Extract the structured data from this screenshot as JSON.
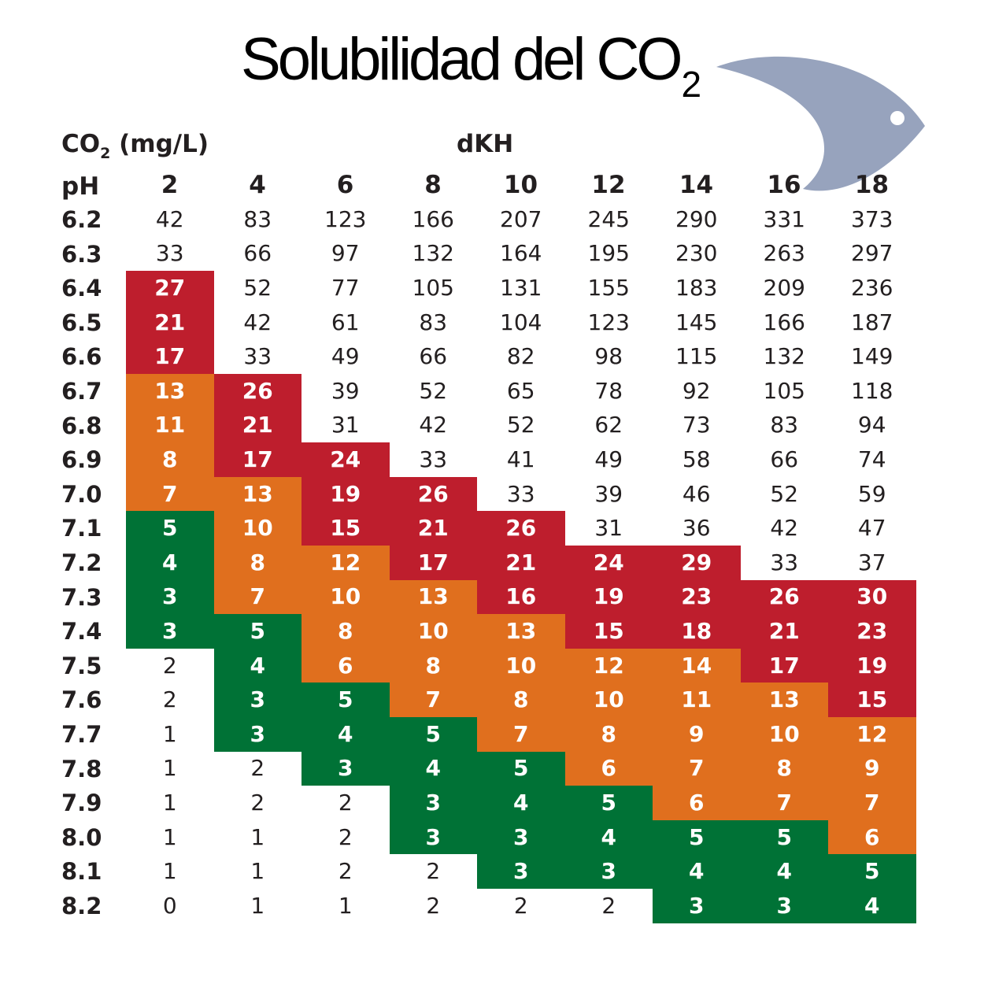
{
  "title": {
    "main": "Solubilidad del CO",
    "subscript": "2"
  },
  "header": {
    "unit_label_pre": "CO",
    "unit_label_sub": "2",
    "unit_label_post": " (mg/L)",
    "dkh_label": "dKH",
    "ph_label": "pH"
  },
  "colors": {
    "red": "#be1e2d",
    "orange": "#e06f1e",
    "green": "#007236",
    "fish": "#97a3bd"
  },
  "decoration": {
    "icon": "fish-icon"
  },
  "chart_data": {
    "type": "table",
    "title": "Solubilidad del CO2",
    "row_header": "pH",
    "column_header": "dKH",
    "value_label": "CO2 (mg/L)",
    "columns": [
      2,
      4,
      6,
      8,
      10,
      12,
      14,
      16,
      18
    ],
    "rows": [
      {
        "ph": "6.2",
        "values": [
          42,
          83,
          123,
          166,
          207,
          245,
          290,
          331,
          373
        ],
        "zones": [
          "none",
          "none",
          "none",
          "none",
          "none",
          "none",
          "none",
          "none",
          "none"
        ]
      },
      {
        "ph": "6.3",
        "values": [
          33,
          66,
          97,
          132,
          164,
          195,
          230,
          263,
          297
        ],
        "zones": [
          "none",
          "none",
          "none",
          "none",
          "none",
          "none",
          "none",
          "none",
          "none"
        ]
      },
      {
        "ph": "6.4",
        "values": [
          27,
          52,
          77,
          105,
          131,
          155,
          183,
          209,
          236
        ],
        "zones": [
          "red",
          "none",
          "none",
          "none",
          "none",
          "none",
          "none",
          "none",
          "none"
        ]
      },
      {
        "ph": "6.5",
        "values": [
          21,
          42,
          61,
          83,
          104,
          123,
          145,
          166,
          187
        ],
        "zones": [
          "red",
          "none",
          "none",
          "none",
          "none",
          "none",
          "none",
          "none",
          "none"
        ]
      },
      {
        "ph": "6.6",
        "values": [
          17,
          33,
          49,
          66,
          82,
          98,
          115,
          132,
          149
        ],
        "zones": [
          "red",
          "none",
          "none",
          "none",
          "none",
          "none",
          "none",
          "none",
          "none"
        ]
      },
      {
        "ph": "6.7",
        "values": [
          13,
          26,
          39,
          52,
          65,
          78,
          92,
          105,
          118
        ],
        "zones": [
          "orange",
          "red",
          "none",
          "none",
          "none",
          "none",
          "none",
          "none",
          "none"
        ]
      },
      {
        "ph": "6.8",
        "values": [
          11,
          21,
          31,
          42,
          52,
          62,
          73,
          83,
          94
        ],
        "zones": [
          "orange",
          "red",
          "none",
          "none",
          "none",
          "none",
          "none",
          "none",
          "none"
        ]
      },
      {
        "ph": "6.9",
        "values": [
          8,
          17,
          24,
          33,
          41,
          49,
          58,
          66,
          74
        ],
        "zones": [
          "orange",
          "red",
          "red",
          "none",
          "none",
          "none",
          "none",
          "none",
          "none"
        ]
      },
      {
        "ph": "7.0",
        "values": [
          7,
          13,
          19,
          26,
          33,
          39,
          46,
          52,
          59
        ],
        "zones": [
          "orange",
          "orange",
          "red",
          "red",
          "none",
          "none",
          "none",
          "none",
          "none"
        ]
      },
      {
        "ph": "7.1",
        "values": [
          5,
          10,
          15,
          21,
          26,
          31,
          36,
          42,
          47
        ],
        "zones": [
          "green",
          "orange",
          "red",
          "red",
          "red",
          "none",
          "none",
          "none",
          "none"
        ]
      },
      {
        "ph": "7.2",
        "values": [
          4,
          8,
          12,
          17,
          21,
          24,
          29,
          33,
          37
        ],
        "zones": [
          "green",
          "orange",
          "orange",
          "red",
          "red",
          "red",
          "red",
          "none",
          "none"
        ]
      },
      {
        "ph": "7.3",
        "values": [
          3,
          7,
          10,
          13,
          16,
          19,
          23,
          26,
          30
        ],
        "zones": [
          "green",
          "orange",
          "orange",
          "orange",
          "red",
          "red",
          "red",
          "red",
          "red"
        ]
      },
      {
        "ph": "7.4",
        "values": [
          3,
          5,
          8,
          10,
          13,
          15,
          18,
          21,
          23
        ],
        "zones": [
          "green",
          "green",
          "orange",
          "orange",
          "orange",
          "red",
          "red",
          "red",
          "red"
        ]
      },
      {
        "ph": "7.5",
        "values": [
          2,
          4,
          6,
          8,
          10,
          12,
          14,
          17,
          19
        ],
        "zones": [
          "none",
          "green",
          "orange",
          "orange",
          "orange",
          "orange",
          "orange",
          "red",
          "red"
        ]
      },
      {
        "ph": "7.6",
        "values": [
          2,
          3,
          5,
          7,
          8,
          10,
          11,
          13,
          15
        ],
        "zones": [
          "none",
          "green",
          "green",
          "orange",
          "orange",
          "orange",
          "orange",
          "orange",
          "red"
        ]
      },
      {
        "ph": "7.7",
        "values": [
          1,
          3,
          4,
          5,
          7,
          8,
          9,
          10,
          12
        ],
        "zones": [
          "none",
          "green",
          "green",
          "green",
          "orange",
          "orange",
          "orange",
          "orange",
          "orange"
        ]
      },
      {
        "ph": "7.8",
        "values": [
          1,
          2,
          3,
          4,
          5,
          6,
          7,
          8,
          9
        ],
        "zones": [
          "none",
          "none",
          "green",
          "green",
          "green",
          "orange",
          "orange",
          "orange",
          "orange"
        ]
      },
      {
        "ph": "7.9",
        "values": [
          1,
          2,
          2,
          3,
          4,
          5,
          6,
          7,
          7
        ],
        "zones": [
          "none",
          "none",
          "none",
          "green",
          "green",
          "green",
          "orange",
          "orange",
          "orange"
        ]
      },
      {
        "ph": "8.0",
        "values": [
          1,
          1,
          2,
          3,
          3,
          4,
          5,
          5,
          6
        ],
        "zones": [
          "none",
          "none",
          "none",
          "green",
          "green",
          "green",
          "green",
          "green",
          "orange"
        ]
      },
      {
        "ph": "8.1",
        "values": [
          1,
          1,
          2,
          2,
          3,
          3,
          4,
          4,
          5
        ],
        "zones": [
          "none",
          "none",
          "none",
          "none",
          "green",
          "green",
          "green",
          "green",
          "green"
        ]
      },
      {
        "ph": "8.2",
        "values": [
          0,
          1,
          1,
          2,
          2,
          2,
          3,
          3,
          4
        ],
        "zones": [
          "none",
          "none",
          "none",
          "none",
          "none",
          "none",
          "green",
          "green",
          "green"
        ]
      }
    ]
  }
}
